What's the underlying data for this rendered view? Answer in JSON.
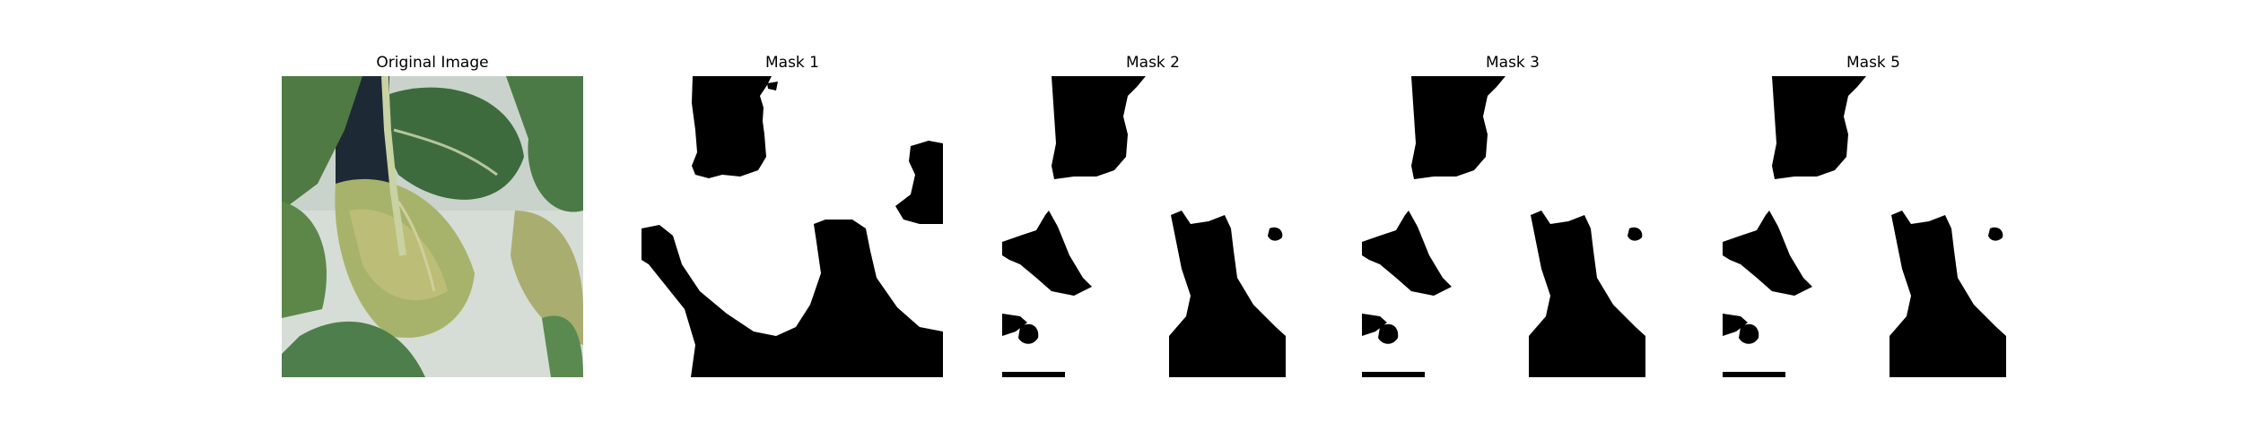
{
  "figure": {
    "panels": [
      {
        "title": "Original Image",
        "kind": "photo"
      },
      {
        "title": "Mask 1",
        "kind": "mask"
      },
      {
        "title": "Mask 2",
        "kind": "mask"
      },
      {
        "title": "Mask 3",
        "kind": "mask"
      },
      {
        "title": "Mask 5",
        "kind": "mask"
      }
    ]
  },
  "colors": {
    "background": "#ffffff",
    "mask_foreground": "#000000",
    "mask_background": "#ffffff",
    "leaf_dark": "#3f6a3a",
    "leaf_light": "#9fb26a",
    "wall": "#d9dfd8"
  }
}
